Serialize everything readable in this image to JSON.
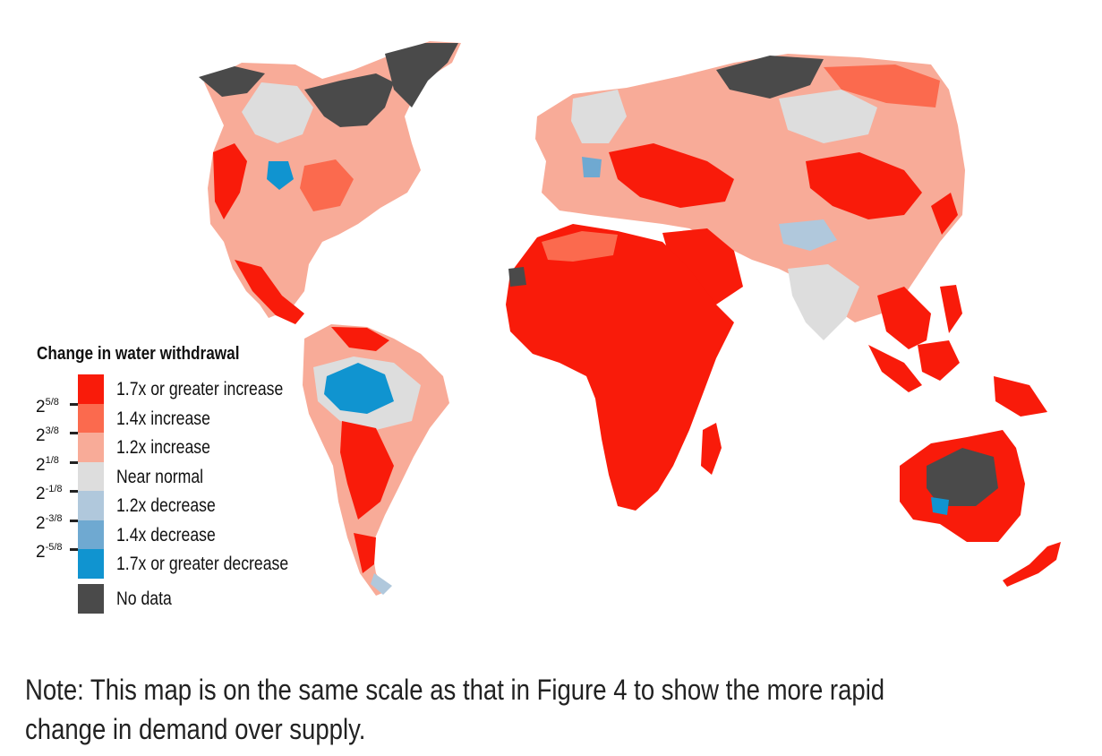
{
  "legend": {
    "title": "Change in water withdrawal",
    "items": [
      {
        "label": "1.7x or greater increase",
        "color": "#f91b0a"
      },
      {
        "label": "1.4x increase",
        "color": "#fb6a4e"
      },
      {
        "label": "1.2x increase",
        "color": "#f8ab98"
      },
      {
        "label": "Near normal",
        "color": "#dddddd"
      },
      {
        "label": "1.2x decrease",
        "color": "#b0c8dc"
      },
      {
        "label": "1.4x decrease",
        "color": "#6fa9d1"
      },
      {
        "label": "1.7x or greater decrease",
        "color": "#1094d0"
      },
      {
        "label": "No data",
        "color": "#4a4a4a"
      }
    ],
    "scale_ticks": [
      {
        "base": "2",
        "exp": "5/8"
      },
      {
        "base": "2",
        "exp": "3/8"
      },
      {
        "base": "2",
        "exp": "1/8"
      },
      {
        "base": "2",
        "exp": "-1/8"
      },
      {
        "base": "2",
        "exp": "-3/8"
      },
      {
        "base": "2",
        "exp": "-5/8"
      }
    ]
  },
  "note": "Note: This map is on the same scale as that in Figure 4 to show the more rapid change in demand over supply."
}
